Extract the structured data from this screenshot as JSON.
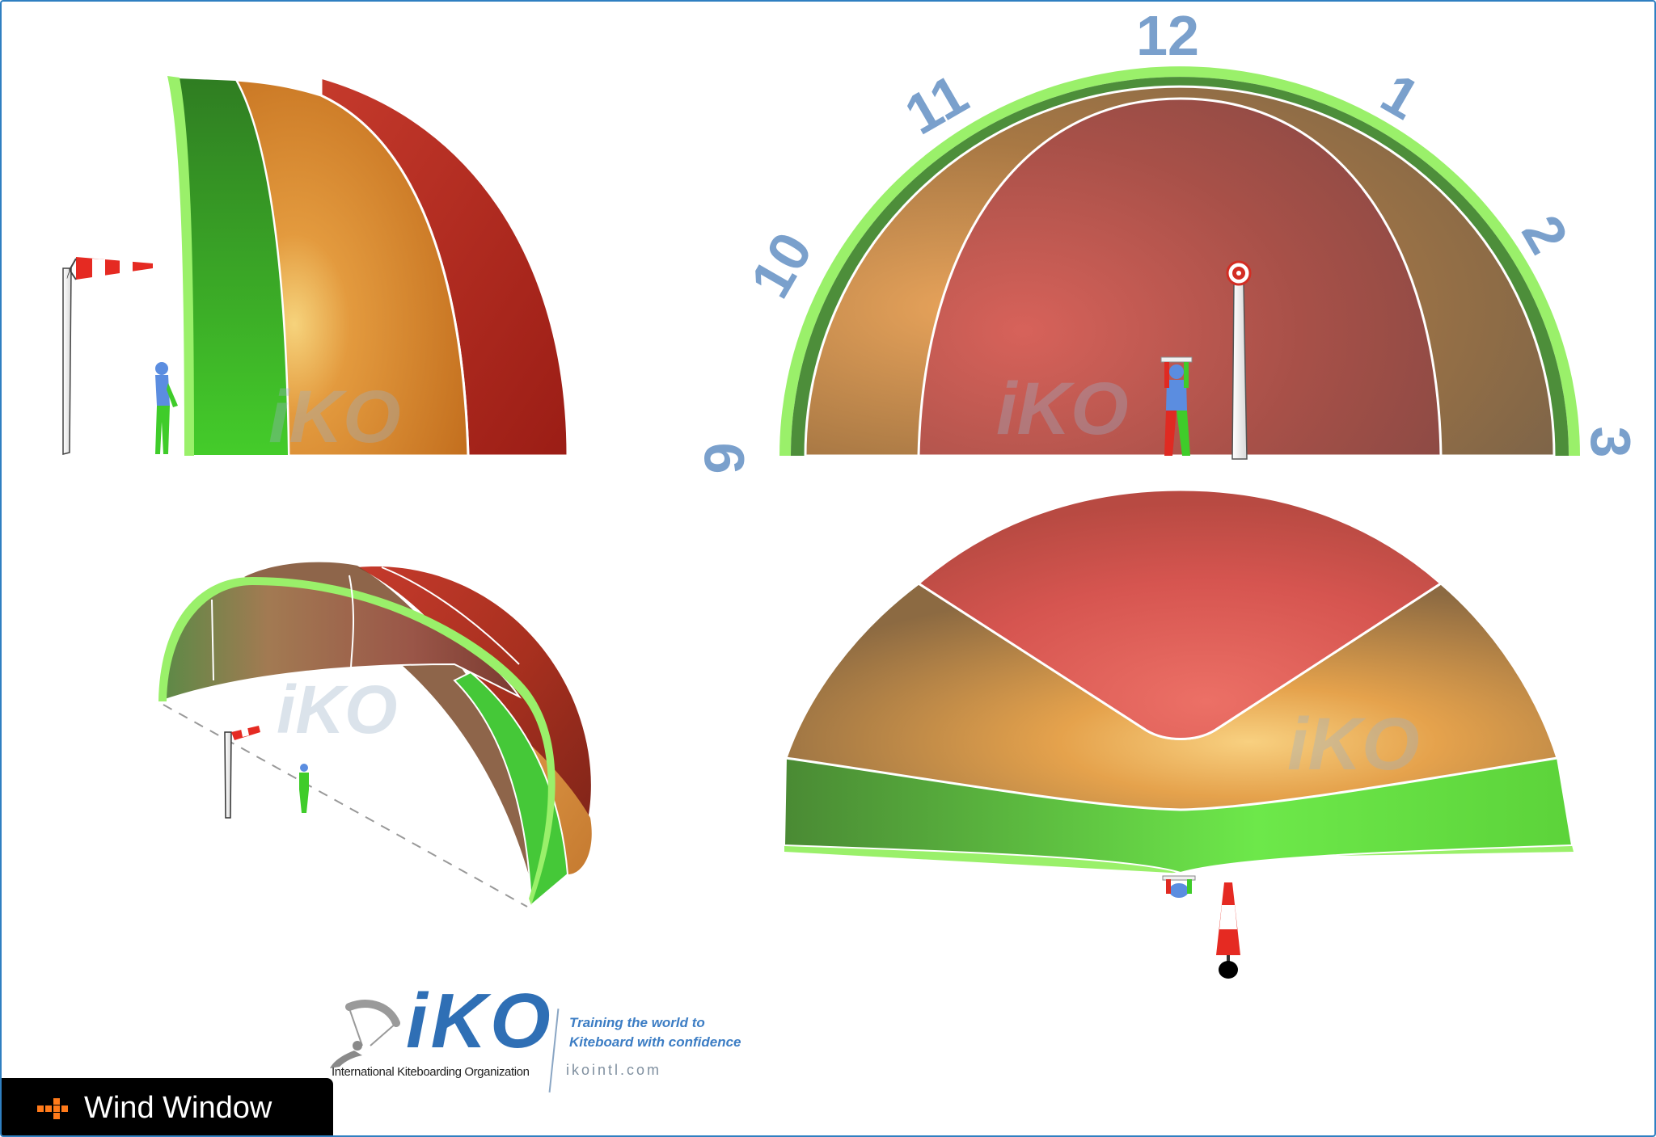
{
  "clock": {
    "n9": "9",
    "n10": "10",
    "n11": "11",
    "n12": "12",
    "n1": "1",
    "n2": "2",
    "n3": "3"
  },
  "watermark": {
    "text": "iKO"
  },
  "logo": {
    "word": "iKO",
    "org": "International Kiteboarding Organization",
    "tagline_line1": "Training the world to",
    "tagline_line2": "Kiteboard with confidence",
    "url": "ikointl.com"
  },
  "caption": {
    "title": "Wind Window"
  },
  "colors": {
    "power_zone": "#c0392b",
    "intermediate_zone": "#d98a3a",
    "edge_zone": "#3fc830",
    "rim": "#9af06a",
    "clock_numbers": "#7aa0cc",
    "brand_blue": "#2f6fb5",
    "caption_bg": "#000000",
    "caption_icon": "#ff7a1a"
  }
}
